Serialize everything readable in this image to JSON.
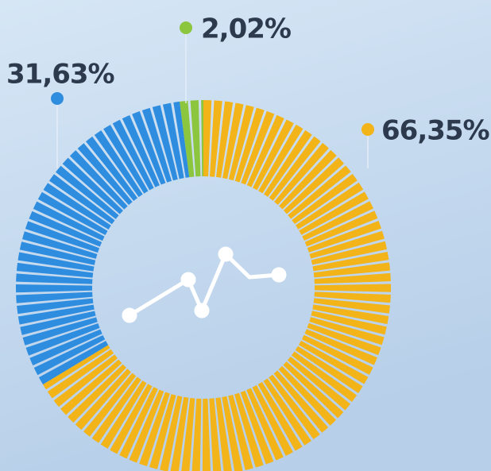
{
  "chart_data": {
    "type": "pie",
    "values": [
      66.35,
      31.63,
      2.02
    ],
    "value_labels": [
      "66,35%",
      "31,63%",
      "2,02%"
    ],
    "colors": [
      "#f2b418",
      "#2f8de0",
      "#8cc63e"
    ]
  }
}
